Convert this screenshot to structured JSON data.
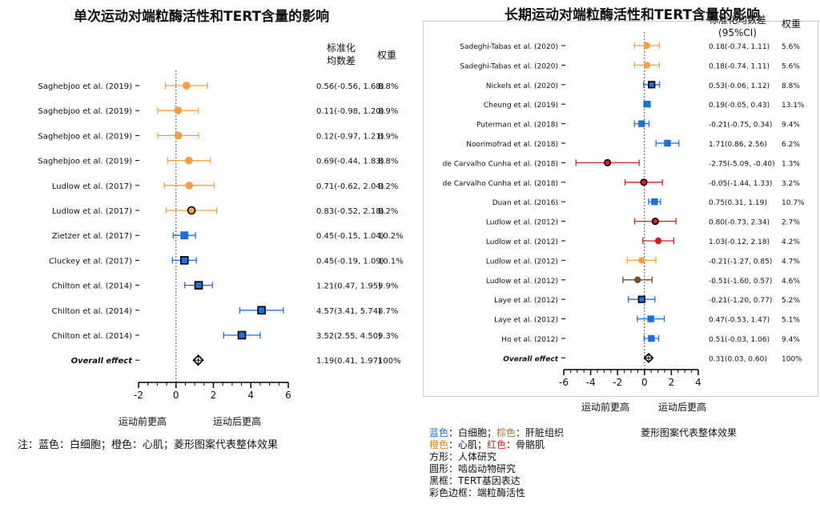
{
  "left": {
    "title": "单次运动对端粒酶活性和TERT含量的影响",
    "header_smd_line1": "标准化",
    "header_smd_line2": "均数差",
    "header_weight": "权重",
    "x_label_left": "运动前更高",
    "x_label_right": "运动后更高",
    "note": "注：蓝色：白细胞；橙色：心肌；菱形图案代表整体效果",
    "chart_data": {
      "type": "forest",
      "xlim": [
        -2,
        6
      ],
      "xticks": [
        "-2",
        "0",
        "2",
        "4",
        "6"
      ],
      "rows": [
        {
          "label": "Saghebjoo et al. (2019)",
          "est": 0.56,
          "lo": -0.56,
          "hi": 1.68,
          "ci_text": "0.56(-0.56, 1.68)",
          "weight": "8.8%",
          "tissue": "cardiac",
          "shape": "circle",
          "black_border": false
        },
        {
          "label": "Saghebjoo et al. (2019)",
          "est": 0.11,
          "lo": -0.98,
          "hi": 1.2,
          "ci_text": "0.11(-0.98, 1.20)",
          "weight": "8.9%",
          "tissue": "cardiac",
          "shape": "circle",
          "black_border": false
        },
        {
          "label": "Saghebjoo et al. (2019)",
          "est": 0.12,
          "lo": -0.97,
          "hi": 1.21,
          "ci_text": "0.12(-0.97, 1.21)",
          "weight": "8.9%",
          "tissue": "cardiac",
          "shape": "circle",
          "black_border": false
        },
        {
          "label": "Saghebjoo et al. (2019)",
          "est": 0.69,
          "lo": -0.44,
          "hi": 1.83,
          "ci_text": "0.69(-0.44, 1.83)",
          "weight": "8.8%",
          "tissue": "cardiac",
          "shape": "circle",
          "black_border": false
        },
        {
          "label": "Ludlow et al. (2017)",
          "est": 0.71,
          "lo": -0.62,
          "hi": 2.04,
          "ci_text": "0.71(-0.62, 2.04)",
          "weight": "8.2%",
          "tissue": "cardiac",
          "shape": "circle",
          "black_border": false
        },
        {
          "label": "Ludlow et al. (2017)",
          "est": 0.83,
          "lo": -0.52,
          "hi": 2.18,
          "ci_text": "0.83(-0.52, 2.18)",
          "weight": "8.2%",
          "tissue": "cardiac",
          "shape": "circle",
          "black_border": true
        },
        {
          "label": "Zietzer et al. (2017)",
          "est": 0.45,
          "lo": -0.15,
          "hi": 1.04,
          "ci_text": "0.45(-0.15, 1.04)",
          "weight": "10.2%",
          "tissue": "leukocyte",
          "shape": "square",
          "black_border": false
        },
        {
          "label": "Cluckey et al. (2017)",
          "est": 0.45,
          "lo": -0.19,
          "hi": 1.09,
          "ci_text": "0.45(-0.19, 1.09)",
          "weight": "10.1%",
          "tissue": "leukocyte",
          "shape": "square",
          "black_border": true
        },
        {
          "label": "Chilton et al. (2014)",
          "est": 1.21,
          "lo": 0.47,
          "hi": 1.95,
          "ci_text": "1.21(0.47, 1.95)",
          "weight": "9.9%",
          "tissue": "leukocyte",
          "shape": "square",
          "black_border": true
        },
        {
          "label": "Chilton et al. (2014)",
          "est": 4.57,
          "lo": 3.41,
          "hi": 5.74,
          "ci_text": "4.57(3.41, 5.74)",
          "weight": "8.7%",
          "tissue": "leukocyte",
          "shape": "square",
          "black_border": true
        },
        {
          "label": "Chilton et al. (2014)",
          "est": 3.52,
          "lo": 2.55,
          "hi": 4.5,
          "ci_text": "3.52(2.55, 4.50)",
          "weight": "9.3%",
          "tissue": "leukocyte",
          "shape": "square",
          "black_border": true
        }
      ],
      "overall": {
        "label": "Overall effect",
        "est": 1.19,
        "lo": 0.41,
        "hi": 1.97,
        "ci_text": "1.19(0.41, 1.97)",
        "weight": "100%"
      }
    }
  },
  "right": {
    "title": "长期运动对端粒酶活性和TERT含量的影响",
    "header_smd_line1": "标准化均数差",
    "header_smd_line2": "(95%CI)",
    "header_weight": "权重",
    "x_label_left": "运动前更高",
    "x_label_right": "运动后更高",
    "legend": {
      "blue_label": "蓝色",
      "blue_text": "：白细胞；",
      "brown_label": "棕色",
      "brown_text": "：肝脏组织",
      "orange_label": "橙色",
      "orange_text": "：心肌；",
      "red_label": "红色",
      "red_text": "：骨骼肌",
      "diamond_text": "菱形图案代表整体效果",
      "square_text": "方形：人体研究",
      "circle_text": "圆形：啮齿动物研究",
      "black_text": "黑框：TERT基因表达",
      "color_text": "彩色边框：端粒酶活性"
    },
    "colors": {
      "blue": "#1f6fd8",
      "orange": "#f5a046",
      "red": "#d42020",
      "brown": "#7a4a2a"
    },
    "chart_data": {
      "type": "forest",
      "xlim": [
        -6,
        4
      ],
      "xticks": [
        "-6",
        "-4",
        "-2",
        "0",
        "2",
        "4"
      ],
      "rows": [
        {
          "label": "Sadeghi-Tabas et al. (2020)",
          "est": 0.18,
          "lo": -0.74,
          "hi": 1.11,
          "ci_text": "0.18(-0.74, 1.11)",
          "weight": "5.6%",
          "tissue": "cardiac",
          "shape": "circle",
          "black_border": false
        },
        {
          "label": "Sadeghi-Tabas et al. (2020)",
          "est": 0.18,
          "lo": -0.74,
          "hi": 1.11,
          "ci_text": "0.18(-0.74, 1.11)",
          "weight": "5.6%",
          "tissue": "cardiac",
          "shape": "circle",
          "black_border": false
        },
        {
          "label": "Nickels et al. (2020)",
          "est": 0.53,
          "lo": -0.06,
          "hi": 1.12,
          "ci_text": "0.53(-0.06, 1.12)",
          "weight": "8.8%",
          "tissue": "leukocyte",
          "shape": "square",
          "black_border": true
        },
        {
          "label": "Cheung et al. (2019)",
          "est": 0.19,
          "lo": -0.05,
          "hi": 0.43,
          "ci_text": "0.19(-0.05, 0.43)",
          "weight": "13.1%",
          "tissue": "leukocyte",
          "shape": "square",
          "black_border": false
        },
        {
          "label": "Puterman et al. (2018)",
          "est": -0.21,
          "lo": -0.75,
          "hi": 0.34,
          "ci_text": "-0.21(-0.75, 0.34)",
          "weight": "9.4%",
          "tissue": "leukocyte",
          "shape": "square",
          "black_border": false
        },
        {
          "label": "Noorimofrad et al. (2018)",
          "est": 1.71,
          "lo": 0.86,
          "hi": 2.56,
          "ci_text": "1.71(0.86, 2.56)",
          "weight": "6.2%",
          "tissue": "leukocyte",
          "shape": "square",
          "black_border": false
        },
        {
          "label": "de Carvalho Cunha et al. (2018)",
          "est": -2.75,
          "lo": -5.09,
          "hi": -0.4,
          "ci_text": "-2.75(-5.09, -0.40)",
          "weight": "1.3%",
          "tissue": "skeletal",
          "shape": "circle",
          "black_border": true
        },
        {
          "label": "de Carvalho Cunha et al. (2018)",
          "est": -0.05,
          "lo": -1.44,
          "hi": 1.33,
          "ci_text": "-0.05(-1.44, 1.33)",
          "weight": "3.2%",
          "tissue": "skeletal",
          "shape": "circle",
          "black_border": true
        },
        {
          "label": "Duan et al. (2016)",
          "est": 0.75,
          "lo": 0.31,
          "hi": 1.19,
          "ci_text": "0.75(0.31, 1.19)",
          "weight": "10.7%",
          "tissue": "leukocyte",
          "shape": "square",
          "black_border": false
        },
        {
          "label": "Ludlow et al. (2012)",
          "est": 0.8,
          "lo": -0.73,
          "hi": 2.34,
          "ci_text": "0.80(-0.73, 2.34)",
          "weight": "2.7%",
          "tissue": "skeletal",
          "shape": "circle",
          "black_border": true
        },
        {
          "label": "Ludlow et al. (2012)",
          "est": 1.03,
          "lo": -0.12,
          "hi": 2.18,
          "ci_text": "1.03(-0.12, 2.18)",
          "weight": "4.2%",
          "tissue": "skeletal",
          "shape": "circle",
          "black_border": false
        },
        {
          "label": "Ludlow et al. (2012)",
          "est": -0.21,
          "lo": -1.27,
          "hi": 0.85,
          "ci_text": "-0.21(-1.27, 0.85)",
          "weight": "4.7%",
          "tissue": "cardiac",
          "shape": "circle",
          "black_border": false
        },
        {
          "label": "Ludlow et al. (2012)",
          "est": -0.51,
          "lo": -1.6,
          "hi": 0.57,
          "ci_text": "-0.51(-1.60, 0.57)",
          "weight": "4.6%",
          "tissue": "liver",
          "shape": "circle",
          "black_border": false
        },
        {
          "label": "Laye et al. (2012)",
          "est": -0.21,
          "lo": -1.2,
          "hi": 0.77,
          "ci_text": "-0.21(-1.20, 0.77)",
          "weight": "5.2%",
          "tissue": "leukocyte",
          "shape": "square",
          "black_border": true
        },
        {
          "label": "Laye et al. (2012)",
          "est": 0.47,
          "lo": -0.53,
          "hi": 1.47,
          "ci_text": "0.47(-0.53, 1.47)",
          "weight": "5.1%",
          "tissue": "leukocyte",
          "shape": "square",
          "black_border": false
        },
        {
          "label": "Ho et al. (2012)",
          "est": 0.51,
          "lo": -0.03,
          "hi": 1.06,
          "ci_text": "0.51(-0.03, 1.06)",
          "weight": "9.4%",
          "tissue": "leukocyte",
          "shape": "square",
          "black_border": false
        }
      ],
      "overall": {
        "label": "Overall effect",
        "est": 0.31,
        "lo": 0.03,
        "hi": 0.6,
        "ci_text": "0.31(0.03, 0.60)",
        "weight": "100%"
      }
    }
  }
}
